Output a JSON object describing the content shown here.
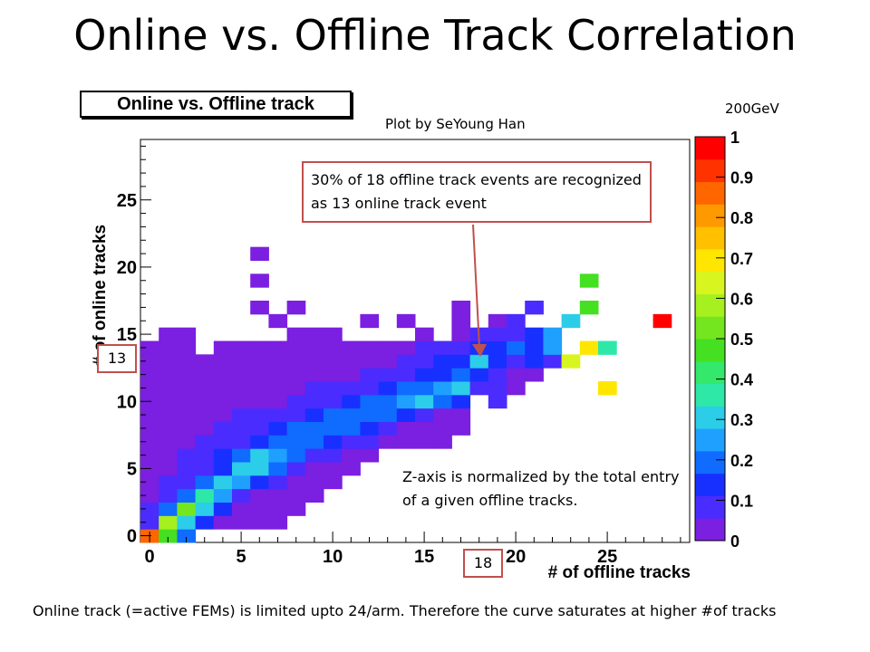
{
  "slide": {
    "title": "Online vs. Offline Track Correlation",
    "plot_title": "Online vs. Offline track",
    "credit": "Plot by SeYoung Han",
    "energy": "200GeV",
    "callout": "30% of 18 offline track events are recognized as 13 online track event",
    "z_note": "Z-axis is normalized by the total entry of a given offline tracks.",
    "footer": "Online track (=active FEMs) is limited upto 24/arm. Therefore the curve saturates at higher #of tracks",
    "marker_y": "13",
    "marker_x": "18"
  },
  "chart_data": {
    "type": "heatmap",
    "title": "Online vs. Offline track",
    "xlabel": "# of offline tracks",
    "ylabel": "# of online tracks",
    "xlim": [
      -0.5,
      29.5
    ],
    "ylim": [
      -0.5,
      29.5
    ],
    "x_ticks": [
      0,
      5,
      10,
      15,
      20,
      25
    ],
    "y_ticks": [
      0,
      5,
      10,
      15,
      20,
      25
    ],
    "zlim": [
      0,
      1
    ],
    "z_ticks": [
      0,
      0.1,
      0.2,
      0.3,
      0.4,
      0.5,
      0.6,
      0.7,
      0.8,
      0.9,
      1
    ],
    "colorbar_colors": [
      "#7b1fe0",
      "#4a2cff",
      "#1830ff",
      "#0f6cff",
      "#1fa0ff",
      "#2ccde8",
      "#2ee8a8",
      "#33e86a",
      "#44e021",
      "#73e61f",
      "#a6f01f",
      "#d9f51f",
      "#ffe600",
      "#ffc000",
      "#ff9900",
      "#ff6600",
      "#ff3300",
      "#ff0000"
    ],
    "cells": [
      [
        0,
        0,
        0.85
      ],
      [
        1,
        0,
        0.45
      ],
      [
        2,
        0,
        0.2
      ],
      [
        0,
        1,
        0.08
      ],
      [
        1,
        1,
        0.6
      ],
      [
        2,
        1,
        0.3
      ],
      [
        3,
        1,
        0.12
      ],
      [
        4,
        1,
        0.05
      ],
      [
        5,
        1,
        0.03
      ],
      [
        6,
        1,
        0.03
      ],
      [
        7,
        1,
        0.03
      ],
      [
        0,
        2,
        0.06
      ],
      [
        1,
        2,
        0.2
      ],
      [
        2,
        2,
        0.5
      ],
      [
        3,
        2,
        0.3
      ],
      [
        4,
        2,
        0.12
      ],
      [
        5,
        2,
        0.05
      ],
      [
        6,
        2,
        0.03
      ],
      [
        7,
        2,
        0.03
      ],
      [
        8,
        2,
        0.03
      ],
      [
        0,
        3,
        0.05
      ],
      [
        1,
        3,
        0.1
      ],
      [
        2,
        3,
        0.2
      ],
      [
        3,
        3,
        0.35
      ],
      [
        4,
        3,
        0.25
      ],
      [
        5,
        3,
        0.08
      ],
      [
        6,
        3,
        0.04
      ],
      [
        7,
        3,
        0.03
      ],
      [
        8,
        3,
        0.03
      ],
      [
        9,
        3,
        0.03
      ],
      [
        0,
        4,
        0.03
      ],
      [
        1,
        4,
        0.06
      ],
      [
        2,
        4,
        0.1
      ],
      [
        3,
        4,
        0.2
      ],
      [
        4,
        4,
        0.3
      ],
      [
        5,
        4,
        0.25
      ],
      [
        6,
        4,
        0.15
      ],
      [
        7,
        4,
        0.08
      ],
      [
        8,
        4,
        0.04
      ],
      [
        9,
        4,
        0.03
      ],
      [
        10,
        4,
        0.03
      ],
      [
        0,
        5,
        0.03
      ],
      [
        1,
        5,
        0.04
      ],
      [
        2,
        5,
        0.07
      ],
      [
        3,
        5,
        0.1
      ],
      [
        4,
        5,
        0.15
      ],
      [
        5,
        5,
        0.28
      ],
      [
        6,
        5,
        0.3
      ],
      [
        7,
        5,
        0.18
      ],
      [
        8,
        5,
        0.1
      ],
      [
        9,
        5,
        0.05
      ],
      [
        10,
        5,
        0.04
      ],
      [
        11,
        5,
        0.03
      ],
      [
        0,
        6,
        0.03
      ],
      [
        1,
        6,
        0.04
      ],
      [
        2,
        6,
        0.06
      ],
      [
        3,
        6,
        0.08
      ],
      [
        4,
        6,
        0.12
      ],
      [
        5,
        6,
        0.2
      ],
      [
        6,
        6,
        0.28
      ],
      [
        7,
        6,
        0.25
      ],
      [
        8,
        6,
        0.18
      ],
      [
        9,
        6,
        0.1
      ],
      [
        10,
        6,
        0.06
      ],
      [
        11,
        6,
        0.04
      ],
      [
        12,
        6,
        0.03
      ],
      [
        0,
        7,
        0.03
      ],
      [
        1,
        7,
        0.04
      ],
      [
        2,
        7,
        0.05
      ],
      [
        3,
        7,
        0.06
      ],
      [
        4,
        7,
        0.08
      ],
      [
        5,
        7,
        0.1
      ],
      [
        6,
        7,
        0.15
      ],
      [
        7,
        7,
        0.22
      ],
      [
        8,
        7,
        0.22
      ],
      [
        9,
        7,
        0.2
      ],
      [
        10,
        7,
        0.15
      ],
      [
        11,
        7,
        0.1
      ],
      [
        12,
        7,
        0.06
      ],
      [
        13,
        7,
        0.04
      ],
      [
        14,
        7,
        0.03
      ],
      [
        15,
        7,
        0.03
      ],
      [
        16,
        7,
        0.03
      ],
      [
        0,
        8,
        0.03
      ],
      [
        1,
        8,
        0.03
      ],
      [
        2,
        8,
        0.04
      ],
      [
        3,
        8,
        0.05
      ],
      [
        4,
        8,
        0.06
      ],
      [
        5,
        8,
        0.08
      ],
      [
        6,
        8,
        0.1
      ],
      [
        7,
        8,
        0.12
      ],
      [
        8,
        8,
        0.18
      ],
      [
        9,
        8,
        0.22
      ],
      [
        10,
        8,
        0.2
      ],
      [
        11,
        8,
        0.18
      ],
      [
        12,
        8,
        0.12
      ],
      [
        13,
        8,
        0.08
      ],
      [
        14,
        8,
        0.05
      ],
      [
        15,
        8,
        0.04
      ],
      [
        16,
        8,
        0.03
      ],
      [
        17,
        8,
        0.03
      ],
      [
        0,
        9,
        0.03
      ],
      [
        1,
        9,
        0.03
      ],
      [
        2,
        9,
        0.03
      ],
      [
        3,
        9,
        0.04
      ],
      [
        4,
        9,
        0.05
      ],
      [
        5,
        9,
        0.06
      ],
      [
        6,
        9,
        0.07
      ],
      [
        7,
        9,
        0.08
      ],
      [
        8,
        9,
        0.1
      ],
      [
        9,
        9,
        0.15
      ],
      [
        10,
        9,
        0.2
      ],
      [
        11,
        9,
        0.22
      ],
      [
        12,
        9,
        0.22
      ],
      [
        13,
        9,
        0.18
      ],
      [
        14,
        9,
        0.12
      ],
      [
        15,
        9,
        0.08
      ],
      [
        16,
        9,
        0.05
      ],
      [
        17,
        9,
        0.03
      ],
      [
        0,
        10,
        0.03
      ],
      [
        1,
        10,
        0.03
      ],
      [
        2,
        10,
        0.03
      ],
      [
        3,
        10,
        0.03
      ],
      [
        4,
        10,
        0.04
      ],
      [
        5,
        10,
        0.04
      ],
      [
        6,
        10,
        0.05
      ],
      [
        7,
        10,
        0.05
      ],
      [
        8,
        10,
        0.06
      ],
      [
        9,
        10,
        0.08
      ],
      [
        10,
        10,
        0.1
      ],
      [
        11,
        10,
        0.15
      ],
      [
        12,
        10,
        0.2
      ],
      [
        13,
        10,
        0.22
      ],
      [
        14,
        10,
        0.25
      ],
      [
        15,
        10,
        0.3
      ],
      [
        16,
        10,
        0.2
      ],
      [
        17,
        10,
        0.12
      ],
      [
        19,
        10,
        0.08
      ],
      [
        0,
        11,
        0.03
      ],
      [
        1,
        11,
        0.03
      ],
      [
        2,
        11,
        0.03
      ],
      [
        3,
        11,
        0.03
      ],
      [
        4,
        11,
        0.03
      ],
      [
        5,
        11,
        0.04
      ],
      [
        6,
        11,
        0.04
      ],
      [
        7,
        11,
        0.04
      ],
      [
        8,
        11,
        0.05
      ],
      [
        9,
        11,
        0.06
      ],
      [
        10,
        11,
        0.07
      ],
      [
        11,
        11,
        0.08
      ],
      [
        12,
        11,
        0.1
      ],
      [
        13,
        11,
        0.12
      ],
      [
        14,
        11,
        0.18
      ],
      [
        15,
        11,
        0.22
      ],
      [
        16,
        11,
        0.25
      ],
      [
        17,
        11,
        0.28
      ],
      [
        18,
        11,
        0.1
      ],
      [
        19,
        11,
        0.08
      ],
      [
        20,
        11,
        0.05
      ],
      [
        0,
        12,
        0.03
      ],
      [
        1,
        12,
        0.03
      ],
      [
        2,
        12,
        0.03
      ],
      [
        3,
        12,
        0.03
      ],
      [
        4,
        12,
        0.03
      ],
      [
        5,
        12,
        0.03
      ],
      [
        6,
        12,
        0.03
      ],
      [
        7,
        12,
        0.04
      ],
      [
        8,
        12,
        0.04
      ],
      [
        9,
        12,
        0.04
      ],
      [
        10,
        12,
        0.05
      ],
      [
        11,
        12,
        0.05
      ],
      [
        12,
        12,
        0.06
      ],
      [
        13,
        12,
        0.08
      ],
      [
        14,
        12,
        0.1
      ],
      [
        15,
        12,
        0.12
      ],
      [
        16,
        12,
        0.15
      ],
      [
        17,
        12,
        0.2
      ],
      [
        18,
        12,
        0.12
      ],
      [
        19,
        12,
        0.08
      ],
      [
        20,
        12,
        0.05
      ],
      [
        21,
        12,
        0.04
      ],
      [
        0,
        13,
        0.03
      ],
      [
        1,
        13,
        0.03
      ],
      [
        2,
        13,
        0.03
      ],
      [
        3,
        13,
        0.03
      ],
      [
        4,
        13,
        0.03
      ],
      [
        5,
        13,
        0.03
      ],
      [
        6,
        13,
        0.03
      ],
      [
        7,
        13,
        0.03
      ],
      [
        8,
        13,
        0.03
      ],
      [
        9,
        13,
        0.04
      ],
      [
        10,
        13,
        0.04
      ],
      [
        11,
        13,
        0.04
      ],
      [
        12,
        13,
        0.05
      ],
      [
        13,
        13,
        0.05
      ],
      [
        14,
        13,
        0.06
      ],
      [
        15,
        13,
        0.08
      ],
      [
        16,
        13,
        0.12
      ],
      [
        17,
        13,
        0.15
      ],
      [
        18,
        13,
        0.3
      ],
      [
        19,
        13,
        0.15
      ],
      [
        20,
        13,
        0.1
      ],
      [
        21,
        13,
        0.15
      ],
      [
        22,
        13,
        0.08
      ],
      [
        23,
        13,
        0.65
      ],
      [
        0,
        14,
        0.03
      ],
      [
        1,
        14,
        0.03
      ],
      [
        2,
        14,
        0.03
      ],
      [
        4,
        14,
        0.03
      ],
      [
        5,
        14,
        0.03
      ],
      [
        6,
        14,
        0.03
      ],
      [
        7,
        14,
        0.03
      ],
      [
        8,
        14,
        0.03
      ],
      [
        9,
        14,
        0.03
      ],
      [
        10,
        14,
        0.03
      ],
      [
        11,
        14,
        0.04
      ],
      [
        12,
        14,
        0.04
      ],
      [
        13,
        14,
        0.04
      ],
      [
        14,
        14,
        0.05
      ],
      [
        15,
        14,
        0.06
      ],
      [
        16,
        14,
        0.08
      ],
      [
        17,
        14,
        0.1
      ],
      [
        18,
        14,
        0.15
      ],
      [
        19,
        14,
        0.12
      ],
      [
        20,
        14,
        0.2
      ],
      [
        21,
        14,
        0.15
      ],
      [
        22,
        14,
        0.25
      ],
      [
        24,
        14,
        0.7
      ],
      [
        25,
        14,
        0.35
      ],
      [
        1,
        15,
        0.03
      ],
      [
        2,
        15,
        0.03
      ],
      [
        8,
        15,
        0.03
      ],
      [
        9,
        15,
        0.03
      ],
      [
        10,
        15,
        0.03
      ],
      [
        15,
        15,
        0.04
      ],
      [
        17,
        15,
        0.05
      ],
      [
        18,
        15,
        0.08
      ],
      [
        19,
        15,
        0.06
      ],
      [
        20,
        15,
        0.1
      ],
      [
        21,
        15,
        0.12
      ],
      [
        22,
        15,
        0.25
      ],
      [
        7,
        16,
        0.03
      ],
      [
        12,
        16,
        0.03
      ],
      [
        14,
        16,
        0.03
      ],
      [
        17,
        16,
        0.04
      ],
      [
        19,
        16,
        0.05
      ],
      [
        20,
        16,
        0.06
      ],
      [
        23,
        16,
        0.3
      ],
      [
        6,
        17,
        0.03
      ],
      [
        8,
        17,
        0.03
      ],
      [
        17,
        17,
        0.03
      ],
      [
        21,
        17,
        0.08
      ],
      [
        24,
        17,
        0.45
      ],
      [
        6,
        19,
        0.03
      ],
      [
        6,
        21,
        0.03
      ],
      [
        28,
        16,
        0.97
      ],
      [
        24,
        19,
        0.45
      ],
      [
        25,
        11,
        0.7
      ]
    ]
  }
}
